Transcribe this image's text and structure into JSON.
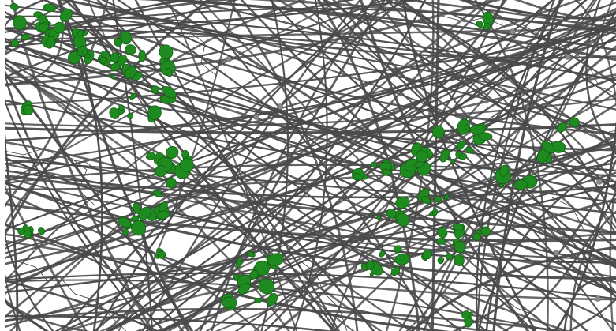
{
  "map": {
    "background_color": "#ffffff",
    "border_color": "#3a3a3a",
    "route_color": "#4a4a4a",
    "blob_color": "#1f8a1f",
    "blob_outline_color": "#0f5a0f",
    "node_color": "#8a8a8a",
    "labels": []
  }
}
